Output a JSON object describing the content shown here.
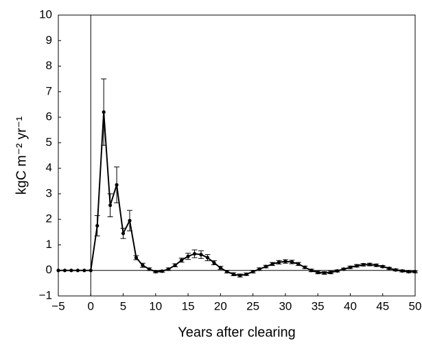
{
  "chart_data": {
    "type": "line",
    "xlabel": "Years after clearing",
    "ylabel": "kgC m⁻² yr⁻¹",
    "x": [
      -5,
      -4,
      -3,
      -2,
      -1,
      0,
      1,
      2,
      3,
      4,
      5,
      6,
      7,
      8,
      9,
      10,
      11,
      12,
      13,
      14,
      15,
      16,
      17,
      18,
      19,
      20,
      21,
      22,
      23,
      24,
      25,
      26,
      27,
      28,
      29,
      30,
      31,
      32,
      33,
      34,
      35,
      36,
      37,
      38,
      39,
      40,
      41,
      42,
      43,
      44,
      45,
      46,
      47,
      48,
      49,
      50
    ],
    "series": [
      {
        "color": "#000000",
        "values": [
          0,
          0,
          0,
          0,
          0,
          0,
          1.75,
          6.2,
          2.55,
          3.35,
          1.45,
          1.95,
          0.5,
          0.2,
          0.05,
          -0.05,
          -0.03,
          0.05,
          0.2,
          0.4,
          0.55,
          0.65,
          0.62,
          0.5,
          0.3,
          0.1,
          -0.05,
          -0.15,
          -0.2,
          -0.15,
          -0.05,
          0.05,
          0.15,
          0.25,
          0.32,
          0.35,
          0.33,
          0.25,
          0.12,
          0,
          -0.08,
          -0.1,
          -0.08,
          -0.02,
          0.05,
          0.12,
          0.18,
          0.22,
          0.23,
          0.2,
          0.15,
          0.08,
          0.02,
          -0.02,
          -0.05,
          -0.05
        ],
        "errors": [
          0,
          0,
          0,
          0,
          0,
          0,
          0.4,
          1.3,
          0.45,
          0.7,
          0.2,
          0.4,
          0.08,
          0.08,
          0.05,
          0.04,
          0.04,
          0.05,
          0.06,
          0.08,
          0.12,
          0.15,
          0.15,
          0.12,
          0.08,
          0.06,
          0.05,
          0.06,
          0.06,
          0.05,
          0.05,
          0.05,
          0.05,
          0.06,
          0.07,
          0.07,
          0.07,
          0.06,
          0.05,
          0.05,
          0.05,
          0.05,
          0.05,
          0.04,
          0.04,
          0.05,
          0.05,
          0.05,
          0.05,
          0.05,
          0.04,
          0.04,
          0.04,
          0.04,
          0.04,
          0.04
        ]
      }
    ],
    "xlim": [
      -5,
      50
    ],
    "xticks": [
      {
        "value": -5,
        "label": "−5"
      },
      0,
      5,
      10,
      15,
      20,
      25,
      30,
      35,
      40,
      45,
      50
    ],
    "ylim": [
      -1,
      10
    ],
    "yticks": [
      {
        "value": -1,
        "label": "−1"
      },
      0,
      1,
      2,
      3,
      4,
      5,
      6,
      7,
      8,
      9,
      10
    ]
  }
}
